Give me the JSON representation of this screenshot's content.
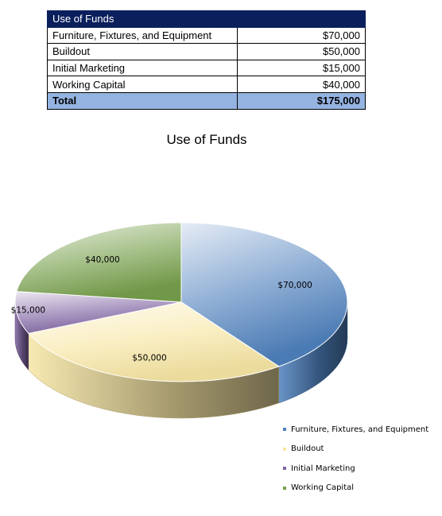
{
  "table": {
    "header": "Use of Funds",
    "rows": [
      {
        "label": "Furniture, Fixtures, and Equipment",
        "amount": "$70,000"
      },
      {
        "label": "Buildout",
        "amount": "$50,000"
      },
      {
        "label": "Initial Marketing",
        "amount": "$15,000"
      },
      {
        "label": "Working Capital",
        "amount": "$40,000"
      }
    ],
    "total": {
      "label": "Total",
      "amount": "$175,000"
    }
  },
  "chart_data": {
    "type": "pie",
    "title": "Use of Funds",
    "categories": [
      "Furniture, Fixtures, and Equipment",
      "Buildout",
      "Initial Marketing",
      "Working Capital"
    ],
    "values": [
      70000,
      50000,
      15000,
      40000
    ],
    "data_labels": [
      "$70,000",
      "$50,000",
      "$15,000",
      "$40,000"
    ],
    "colors": [
      "#4f81bd",
      "#f7e6a4",
      "#8064a2",
      "#77a04c"
    ],
    "style": "3d-pie",
    "legend": "bottom-right"
  }
}
